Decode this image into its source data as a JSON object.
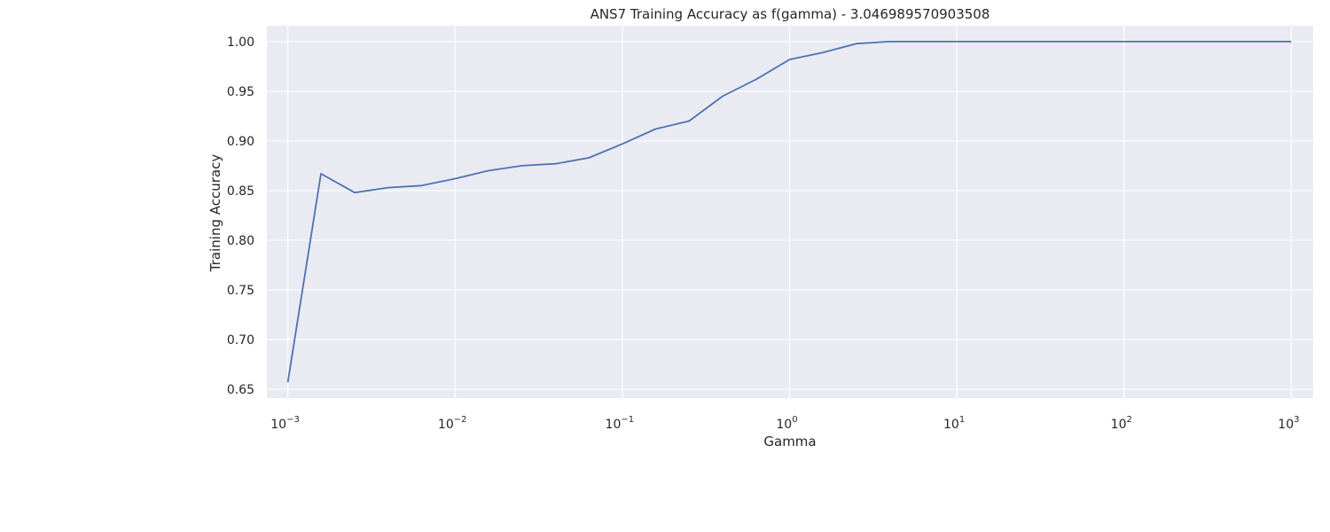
{
  "chart_data": {
    "type": "line",
    "title": "ANS7 Training Accuracy as f(gamma) - 3.046989570903508",
    "xlabel": "Gamma",
    "ylabel": "Training Accuracy",
    "xscale": "log",
    "xlim": [
      0.00075,
      1350
    ],
    "ylim": [
      0.641,
      1.016
    ],
    "grid": true,
    "background_color": "#eaeaf2",
    "grid_color": "#ffffff",
    "line_color": "#4c72b0",
    "x_ticks": [
      {
        "value": 0.001,
        "base": "10",
        "exp": "−3"
      },
      {
        "value": 0.01,
        "base": "10",
        "exp": "−2"
      },
      {
        "value": 0.1,
        "base": "10",
        "exp": "−1"
      },
      {
        "value": 1,
        "base": "10",
        "exp": "0"
      },
      {
        "value": 10,
        "base": "10",
        "exp": "1"
      },
      {
        "value": 100,
        "base": "10",
        "exp": "2"
      },
      {
        "value": 1000,
        "base": "10",
        "exp": "3"
      }
    ],
    "y_ticks": [
      {
        "value": 0.65,
        "label": "0.65"
      },
      {
        "value": 0.7,
        "label": "0.70"
      },
      {
        "value": 0.75,
        "label": "0.75"
      },
      {
        "value": 0.8,
        "label": "0.80"
      },
      {
        "value": 0.85,
        "label": "0.85"
      },
      {
        "value": 0.9,
        "label": "0.90"
      },
      {
        "value": 0.95,
        "label": "0.95"
      },
      {
        "value": 1.0,
        "label": "1.00"
      }
    ],
    "series": [
      {
        "x": [
          0.001,
          0.00158,
          0.00251,
          0.00398,
          0.00631,
          0.01,
          0.0158,
          0.0251,
          0.0398,
          0.0631,
          0.1,
          0.158,
          0.251,
          0.398,
          0.631,
          1.0,
          1.58,
          2.51,
          3.98,
          6.31,
          10,
          15.8,
          25.1,
          39.8,
          63.1,
          100,
          158,
          251,
          398,
          631,
          1000
        ],
        "values": [
          0.657,
          0.867,
          0.848,
          0.853,
          0.855,
          0.862,
          0.87,
          0.875,
          0.877,
          0.883,
          0.897,
          0.912,
          0.92,
          0.945,
          0.962,
          0.982,
          0.989,
          0.998,
          1.0,
          1.0,
          1.0,
          1.0,
          1.0,
          1.0,
          1.0,
          1.0,
          1.0,
          1.0,
          1.0,
          1.0,
          1.0
        ]
      }
    ]
  }
}
